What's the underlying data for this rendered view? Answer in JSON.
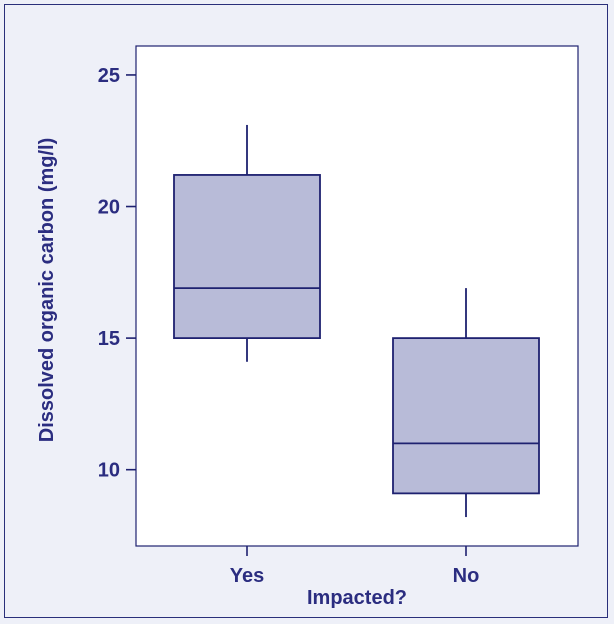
{
  "chart_data": {
    "type": "box",
    "xlabel": "Impacted?",
    "ylabel": "Dissolved organic carbon (mg/l)",
    "ylim": [
      7.1,
      26.1
    ],
    "yticks": [
      10,
      15,
      20,
      25
    ],
    "categories": [
      "Yes",
      "No"
    ],
    "boxes": [
      {
        "category": "Yes",
        "whisker_low": 14.1,
        "q1": 15.0,
        "median": 16.9,
        "q3": 21.2,
        "whisker_high": 23.1
      },
      {
        "category": "No",
        "whisker_low": 8.2,
        "q1": 9.1,
        "median": 11.0,
        "q3": 15.0,
        "whisker_high": 16.9
      }
    ],
    "grid": false,
    "colors": {
      "box_fill": "#b8bbd8",
      "line": "#1e2170",
      "text": "#2b2d80",
      "background": "#eef0f8",
      "plot_background": "#ffffff"
    }
  }
}
